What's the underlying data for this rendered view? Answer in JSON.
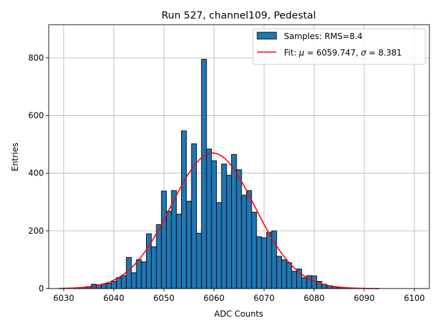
{
  "chart_data": {
    "type": "bar",
    "title": "Run 527, channel109, Pedestal",
    "xlabel": "ADC Counts",
    "ylabel": "Entries",
    "xlim": [
      6027,
      6103
    ],
    "ylim": [
      0,
      915
    ],
    "grid": true,
    "legend_placement": "top-right",
    "colors": {
      "bars": "#1f77b4",
      "bar_edge": "#000000",
      "fit": "#ff0000",
      "grid": "#b0b0b0"
    },
    "x_ticks": [
      6030,
      6040,
      6050,
      6060,
      6070,
      6080,
      6090,
      6100
    ],
    "y_ticks": [
      0,
      200,
      400,
      600,
      800
    ],
    "histogram": {
      "name": "Samples: RMS=8.4",
      "bin_width": 1,
      "bins": [
        [
          6031,
          1
        ],
        [
          6032,
          2
        ],
        [
          6033,
          3
        ],
        [
          6034,
          4
        ],
        [
          6035,
          7
        ],
        [
          6036,
          15
        ],
        [
          6037,
          13
        ],
        [
          6038,
          16
        ],
        [
          6039,
          18
        ],
        [
          6040,
          25
        ],
        [
          6041,
          38
        ],
        [
          6042,
          45
        ],
        [
          6043,
          108
        ],
        [
          6044,
          55
        ],
        [
          6045,
          100
        ],
        [
          6046,
          93
        ],
        [
          6047,
          190
        ],
        [
          6048,
          145
        ],
        [
          6049,
          222
        ],
        [
          6050,
          338
        ],
        [
          6051,
          268
        ],
        [
          6052,
          340
        ],
        [
          6053,
          258
        ],
        [
          6054,
          547
        ],
        [
          6055,
          303
        ],
        [
          6056,
          502
        ],
        [
          6057,
          192
        ],
        [
          6058,
          795
        ],
        [
          6059,
          484
        ],
        [
          6060,
          443
        ],
        [
          6061,
          298
        ],
        [
          6062,
          432
        ],
        [
          6063,
          393
        ],
        [
          6064,
          465
        ],
        [
          6065,
          412
        ],
        [
          6066,
          324
        ],
        [
          6067,
          340
        ],
        [
          6068,
          265
        ],
        [
          6069,
          180
        ],
        [
          6070,
          176
        ],
        [
          6071,
          195
        ],
        [
          6072,
          200
        ],
        [
          6073,
          112
        ],
        [
          6074,
          100
        ],
        [
          6075,
          90
        ],
        [
          6076,
          60
        ],
        [
          6077,
          68
        ],
        [
          6078,
          38
        ],
        [
          6079,
          45
        ],
        [
          6080,
          44
        ],
        [
          6081,
          25
        ],
        [
          6082,
          15
        ],
        [
          6083,
          10
        ],
        [
          6084,
          6
        ],
        [
          6085,
          4
        ],
        [
          6086,
          3
        ],
        [
          6087,
          2
        ]
      ]
    },
    "fit": {
      "name": "Fit: μ = 6059.747, σ = 8.381",
      "label_prefix": "Fit: ",
      "mu_symbol": "μ",
      "mu_text": " = 6059.747, ",
      "sigma_symbol": "σ",
      "sigma_text": " = 8.381",
      "mu": 6059.747,
      "sigma": 8.381,
      "amplitude": 470,
      "x_range": [
        6029,
        6093
      ]
    }
  }
}
